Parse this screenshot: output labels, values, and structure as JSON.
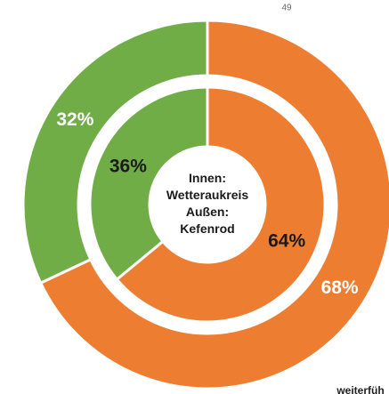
{
  "chart_data": {
    "type": "donut",
    "rings": [
      {
        "values": [
          68,
          32
        ],
        "value_labels": [
          "68%",
          "32%"
        ],
        "colors": [
          "#ed7d31",
          "#70ad47"
        ],
        "label_color": "#ffffff"
      },
      {
        "values": [
          64,
          36
        ],
        "value_labels": [
          "64%",
          "36%"
        ],
        "colors": [
          "#ed7d31",
          "#70ad47"
        ],
        "label_color": "#1a1a1a"
      }
    ],
    "center_text": [
      "Innen:",
      "Wetteraukreis",
      "Außen:",
      "Kefenrod"
    ],
    "annotations": [
      "49",
      "weiterfüh"
    ]
  }
}
